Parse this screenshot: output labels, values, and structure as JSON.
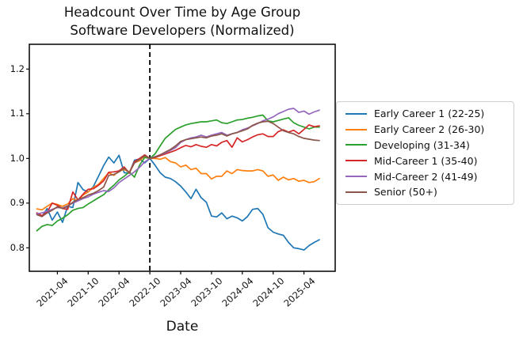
{
  "title_line1": "Headcount Over Time by Age Group",
  "title_line2": "Software Developers (Normalized)",
  "chart_data": {
    "type": "line",
    "title": "Headcount Over Time by Age Group",
    "subtitle": "Software Developers (Normalized)",
    "xlabel": "Date",
    "ylabel": "",
    "grid": false,
    "legend_position": "center-right-outside",
    "ylim": [
      0.746,
      1.252
    ],
    "yticks": [
      0.8,
      0.9,
      1.0,
      1.1,
      1.2
    ],
    "xtick_labels": [
      "2021-04",
      "2021-10",
      "2022-04",
      "2022-10",
      "2023-04",
      "2023-10",
      "2024-04",
      "2024-10",
      "2025-04"
    ],
    "event_line": {
      "date": "2022-10",
      "style": "dashed",
      "color": "#000000"
    },
    "x": [
      "2020-12",
      "2021-01",
      "2021-02",
      "2021-03",
      "2021-04",
      "2021-05",
      "2021-06",
      "2021-07",
      "2021-08",
      "2021-09",
      "2021-10",
      "2021-11",
      "2021-12",
      "2022-01",
      "2022-02",
      "2022-03",
      "2022-04",
      "2022-05",
      "2022-06",
      "2022-07",
      "2022-08",
      "2022-09",
      "2022-10",
      "2022-11",
      "2022-12",
      "2023-01",
      "2023-02",
      "2023-03",
      "2023-04",
      "2023-05",
      "2023-06",
      "2023-07",
      "2023-08",
      "2023-09",
      "2023-10",
      "2023-11",
      "2023-12",
      "2024-01",
      "2024-02",
      "2024-03",
      "2024-04",
      "2024-05",
      "2024-06",
      "2024-07",
      "2024-08",
      "2024-09",
      "2024-10",
      "2024-11",
      "2024-12",
      "2025-01",
      "2025-02",
      "2025-03",
      "2025-04",
      "2025-05",
      "2025-06",
      "2025-07"
    ],
    "series": [
      {
        "name": "Early Career 1 (22-25)",
        "color": "#1f77b4",
        "values": [
          0.878,
          0.87,
          0.888,
          0.862,
          0.88,
          0.857,
          0.893,
          0.89,
          0.946,
          0.93,
          0.925,
          0.937,
          0.96,
          0.984,
          1.003,
          0.99,
          1.007,
          0.968,
          0.967,
          0.996,
          0.999,
          0.99,
          1.0,
          0.985,
          0.968,
          0.958,
          0.955,
          0.948,
          0.938,
          0.925,
          0.91,
          0.931,
          0.912,
          0.902,
          0.871,
          0.869,
          0.878,
          0.865,
          0.871,
          0.867,
          0.86,
          0.87,
          0.886,
          0.888,
          0.875,
          0.845,
          0.835,
          0.831,
          0.828,
          0.812,
          0.8,
          0.798,
          0.795,
          0.805,
          0.812,
          0.818
        ]
      },
      {
        "name": "Early Career 2 (26-30)",
        "color": "#ff7f0e",
        "values": [
          0.887,
          0.885,
          0.893,
          0.9,
          0.897,
          0.893,
          0.898,
          0.91,
          0.905,
          0.918,
          0.925,
          0.935,
          0.942,
          0.955,
          0.968,
          0.962,
          0.972,
          0.975,
          0.97,
          0.99,
          0.995,
          1.005,
          1.0,
          1.0,
          0.998,
          1.002,
          0.993,
          0.99,
          0.981,
          0.985,
          0.975,
          0.978,
          0.966,
          0.966,
          0.954,
          0.96,
          0.96,
          0.972,
          0.966,
          0.975,
          0.973,
          0.972,
          0.972,
          0.975,
          0.972,
          0.96,
          0.963,
          0.951,
          0.958,
          0.952,
          0.955,
          0.949,
          0.951,
          0.946,
          0.948,
          0.955
        ]
      },
      {
        "name": "Developing (31-34)",
        "color": "#2ca02c",
        "values": [
          0.838,
          0.848,
          0.852,
          0.85,
          0.86,
          0.866,
          0.874,
          0.884,
          0.888,
          0.89,
          0.898,
          0.905,
          0.912,
          0.919,
          0.93,
          0.94,
          0.952,
          0.96,
          0.97,
          0.958,
          0.985,
          1.002,
          1.0,
          1.01,
          1.028,
          1.045,
          1.055,
          1.065,
          1.07,
          1.075,
          1.078,
          1.08,
          1.082,
          1.082,
          1.084,
          1.086,
          1.08,
          1.078,
          1.082,
          1.086,
          1.087,
          1.09,
          1.092,
          1.095,
          1.097,
          1.084,
          1.082,
          1.085,
          1.088,
          1.091,
          1.08,
          1.074,
          1.07,
          1.066,
          1.07,
          1.07
        ]
      },
      {
        "name": "Mid-Career 1 (35-40)",
        "color": "#d62728",
        "values": [
          0.878,
          0.872,
          0.88,
          0.9,
          0.895,
          0.888,
          0.886,
          0.925,
          0.907,
          0.92,
          0.931,
          0.932,
          0.94,
          0.95,
          0.969,
          0.97,
          0.972,
          0.981,
          0.967,
          0.993,
          1.0,
          1.008,
          1.0,
          1.002,
          1.006,
          1.01,
          1.014,
          1.018,
          1.024,
          1.029,
          1.026,
          1.031,
          1.027,
          1.025,
          1.031,
          1.028,
          1.036,
          1.04,
          1.025,
          1.046,
          1.037,
          1.042,
          1.048,
          1.053,
          1.055,
          1.049,
          1.049,
          1.06,
          1.064,
          1.059,
          1.063,
          1.055,
          1.065,
          1.075,
          1.071,
          1.073
        ]
      },
      {
        "name": "Mid-Career 2 (41-49)",
        "color": "#9467bd",
        "values": [
          0.876,
          0.878,
          0.882,
          0.886,
          0.89,
          0.889,
          0.894,
          0.9,
          0.905,
          0.91,
          0.914,
          0.92,
          0.924,
          0.928,
          0.926,
          0.934,
          0.946,
          0.954,
          0.962,
          0.97,
          0.98,
          0.992,
          1.0,
          1.004,
          1.008,
          1.012,
          1.018,
          1.024,
          1.036,
          1.042,
          1.046,
          1.048,
          1.052,
          1.048,
          1.052,
          1.055,
          1.058,
          1.052,
          1.055,
          1.058,
          1.064,
          1.068,
          1.073,
          1.078,
          1.084,
          1.088,
          1.093,
          1.1,
          1.105,
          1.11,
          1.112,
          1.103,
          1.106,
          1.099,
          1.104,
          1.108
        ]
      },
      {
        "name": "Senior (50+)",
        "color": "#8c564b",
        "values": [
          0.874,
          0.87,
          0.878,
          0.884,
          0.892,
          0.888,
          0.893,
          0.902,
          0.908,
          0.912,
          0.918,
          0.922,
          0.928,
          0.936,
          0.962,
          0.964,
          0.97,
          0.978,
          0.968,
          0.99,
          0.998,
          1.006,
          1.0,
          1.003,
          1.008,
          1.014,
          1.02,
          1.028,
          1.038,
          1.042,
          1.044,
          1.046,
          1.048,
          1.046,
          1.05,
          1.052,
          1.055,
          1.05,
          1.055,
          1.058,
          1.062,
          1.066,
          1.074,
          1.079,
          1.082,
          1.083,
          1.078,
          1.07,
          1.062,
          1.058,
          1.055,
          1.049,
          1.045,
          1.043,
          1.041,
          1.04
        ]
      }
    ]
  }
}
